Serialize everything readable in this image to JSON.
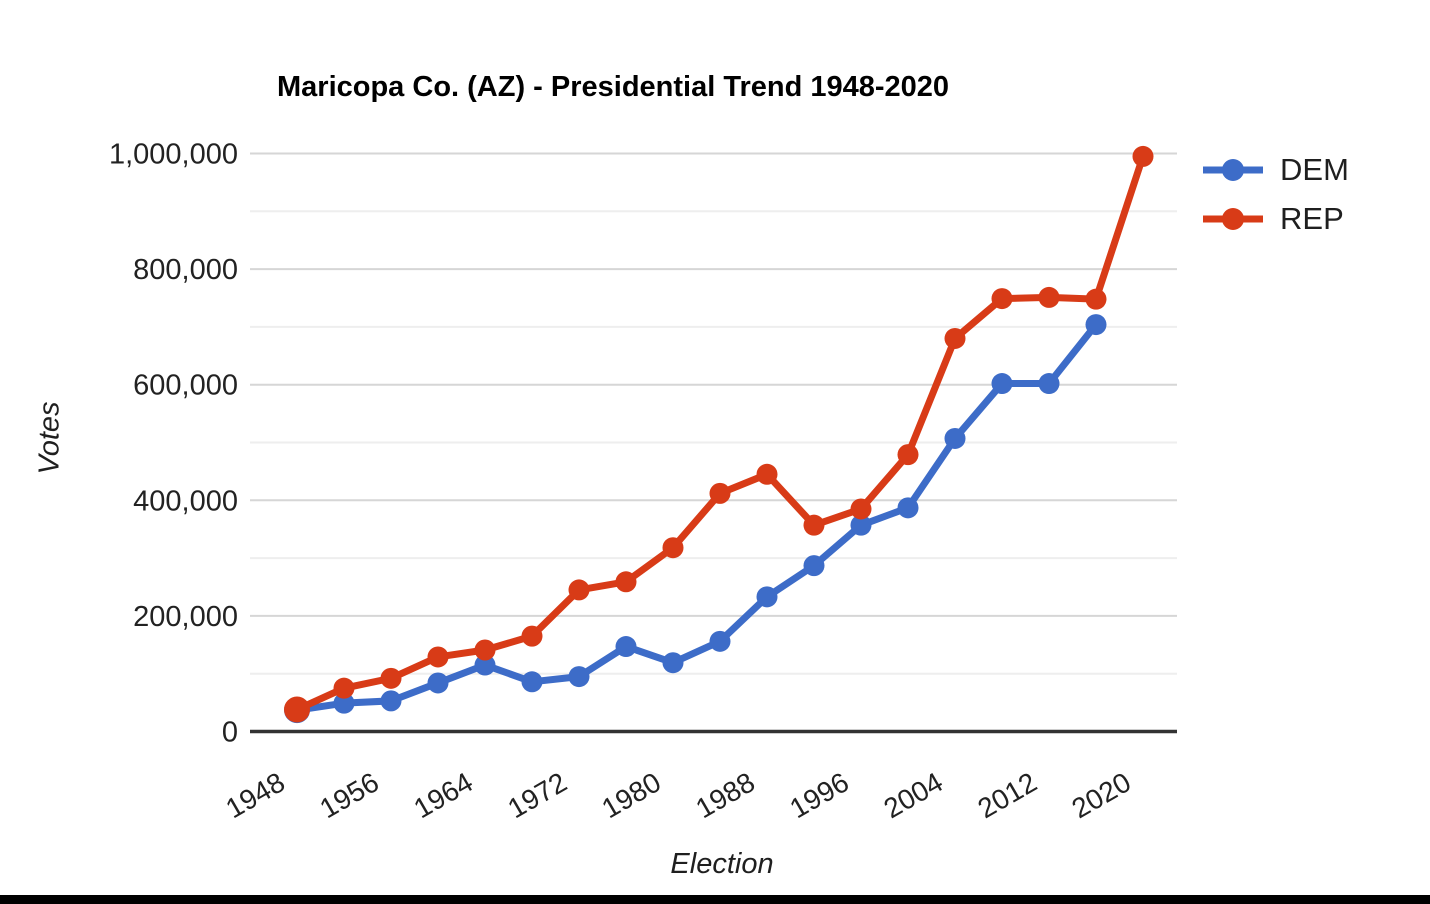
{
  "page": {
    "background": "#ffffff",
    "bottom_bar_color": "#000000"
  },
  "chart_data": {
    "type": "line",
    "title": "Maricopa Co. (AZ) - Presidential Trend 1948-2020",
    "xlabel": "Election",
    "ylabel": "Votes",
    "x": [
      1948,
      1952,
      1956,
      1960,
      1964,
      1968,
      1972,
      1976,
      1980,
      1984,
      1988,
      1992,
      1996,
      2000,
      2004,
      2008,
      2012,
      2016,
      2020
    ],
    "x_tick_labels": [
      "1948",
      "1956",
      "1964",
      "1972",
      "1980",
      "1988",
      "1996",
      "2004",
      "2012",
      "2020"
    ],
    "y_ticks": [
      0,
      200000,
      400000,
      600000,
      800000,
      1000000
    ],
    "y_tick_labels": [
      "0",
      "200,000",
      "400,000",
      "600,000",
      "800,000",
      "1,000,000"
    ],
    "ylim": [
      0,
      1000000
    ],
    "grid": {
      "major_every": 200000,
      "minor_every": 100000,
      "major_color": "#d6d6d6",
      "minor_color": "#eeeeee"
    },
    "axis_color": "#333333",
    "tick_label_color": "#222222",
    "legend_position": "right",
    "series": [
      {
        "name": "DEM",
        "color": "#3d6cc8",
        "values": [
          37000,
          49000,
          53000,
          84000,
          115000,
          86000,
          95000,
          147000,
          119000,
          156000,
          233000,
          287000,
          357000,
          387000,
          507000,
          602000,
          602000,
          704000,
          null
        ]
      },
      {
        "name": "REP",
        "color": "#d83b17",
        "values": [
          38000,
          75000,
          92000,
          129000,
          141000,
          165000,
          245000,
          259000,
          318000,
          412000,
          445000,
          357000,
          385000,
          479000,
          680000,
          749000,
          751000,
          748000,
          995000
        ]
      }
    ]
  }
}
